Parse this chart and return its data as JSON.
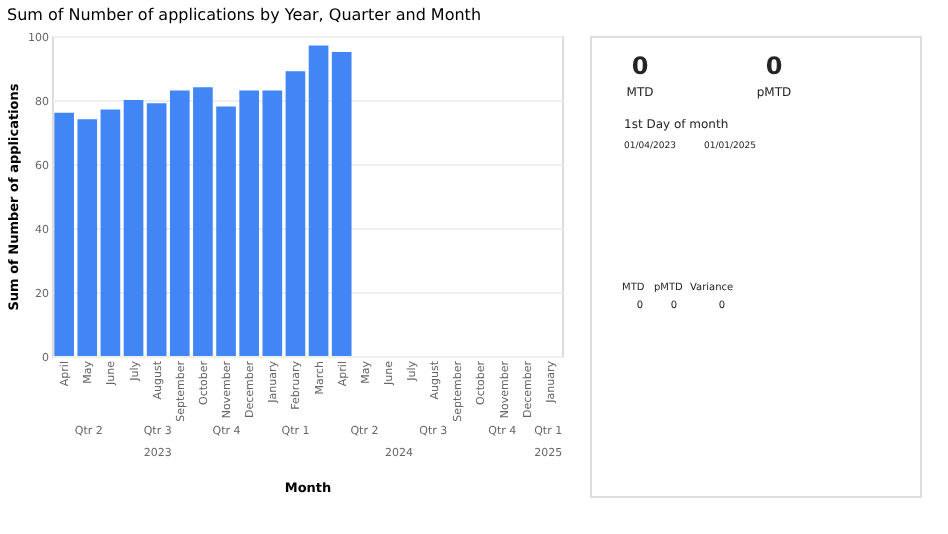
{
  "chart_data": [
    {
      "type": "bar",
      "title": "Sum of Number of applications by Year, Quarter and Month",
      "xlabel": "Month",
      "ylabel": "Sum of Number of applications",
      "categories": [
        "April",
        "May",
        "June",
        "July",
        "August",
        "September",
        "October",
        "November",
        "December",
        "January",
        "February",
        "March",
        "April",
        "May",
        "June",
        "July",
        "August",
        "September",
        "October",
        "November",
        "December",
        "January"
      ],
      "values": [
        76,
        74,
        77,
        80,
        79,
        83,
        84,
        78,
        83,
        83,
        89,
        97,
        95,
        null,
        null,
        null,
        null,
        null,
        null,
        null,
        null,
        null
      ],
      "color": "#4285f4",
      "ylim": [
        0,
        100
      ],
      "yticks": [
        0,
        20,
        40,
        60,
        80,
        100
      ],
      "grid": "y",
      "annotations": [
        "Qtr 2",
        "Qtr 3",
        "Qtr 4",
        "Qtr 1",
        "Qtr 2",
        "Qtr 3",
        "Qtr 4",
        "Qtr 1",
        "2023",
        "2024",
        "2025"
      ]
    },
    {
      "type": "other",
      "annotations": [
        "0",
        "MTD",
        "0",
        "pMTD",
        "1st Day of month",
        "01/04/2023",
        "01/01/2025",
        "MTD",
        "pMTD",
        "Variance",
        "0",
        "0",
        "0"
      ]
    }
  ]
}
